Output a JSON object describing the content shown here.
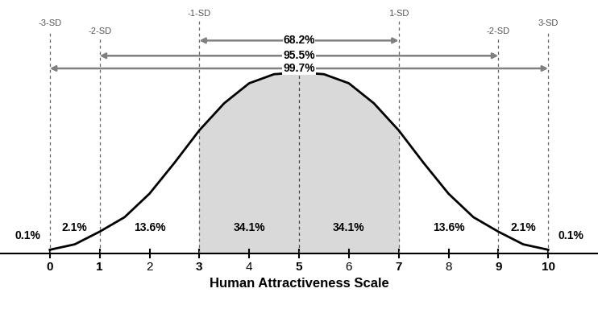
{
  "chart_data": {
    "type": "normal_distribution",
    "x_label": "Human Attractiveness Scale",
    "curve": {
      "x": [
        0,
        0.5,
        1,
        1.5,
        2,
        2.5,
        3,
        3.5,
        4,
        4.5,
        5,
        5.5,
        6,
        6.5,
        7,
        7.5,
        8,
        8.5,
        9,
        9.5,
        10
      ],
      "values": [
        0.02,
        0.05,
        0.12,
        0.2,
        0.33,
        0.5,
        0.68,
        0.83,
        0.94,
        0.99,
        1.0,
        0.99,
        0.94,
        0.83,
        0.68,
        0.5,
        0.33,
        0.2,
        0.12,
        0.05,
        0.02
      ]
    },
    "shaded": {
      "from": 3,
      "to": 7
    },
    "color": "#d9d9d9",
    "sd_lines": [
      {
        "x": 0,
        "label": "-3-SD"
      },
      {
        "x": 1,
        "label": "-2-SD"
      },
      {
        "x": 3,
        "label": "-1-SD"
      },
      {
        "x": 5,
        "label": null
      },
      {
        "x": 7,
        "label": "1-SD"
      },
      {
        "x": 9,
        "label": "-2-SD"
      },
      {
        "x": 10,
        "label": "3-SD"
      }
    ],
    "regions": [
      {
        "from": null,
        "to": 0,
        "value": 0.1,
        "label": "0.1%"
      },
      {
        "from": 0,
        "to": 1,
        "value": 2.1,
        "label": "2.1%"
      },
      {
        "from": 1,
        "to": 3,
        "value": 13.6,
        "label": "13.6%"
      },
      {
        "from": 3,
        "to": 5,
        "value": 34.1,
        "label": "34.1%"
      },
      {
        "from": 5,
        "to": 7,
        "value": 34.1,
        "label": "34.1%"
      },
      {
        "from": 7,
        "to": 9,
        "value": 13.6,
        "label": "13.6%"
      },
      {
        "from": 9,
        "to": 10,
        "value": 2.1,
        "label": "2.1%"
      },
      {
        "from": 10,
        "to": null,
        "value": 0.1,
        "label": "0.1%"
      }
    ],
    "ranges": [
      {
        "from": 3,
        "to": 7,
        "value": 68.2,
        "label": "68.2%"
      },
      {
        "from": 1,
        "to": 9,
        "value": 95.5,
        "label": "95.5%"
      },
      {
        "from": 0,
        "to": 10,
        "value": 99.7,
        "label": "99.7%"
      }
    ],
    "xlim": [
      -1,
      11
    ],
    "xticks": [
      0,
      1,
      2,
      3,
      4,
      5,
      6,
      7,
      8,
      9,
      10
    ],
    "ylim": [
      0,
      1.4
    ],
    "tick_labels": "x"
  }
}
